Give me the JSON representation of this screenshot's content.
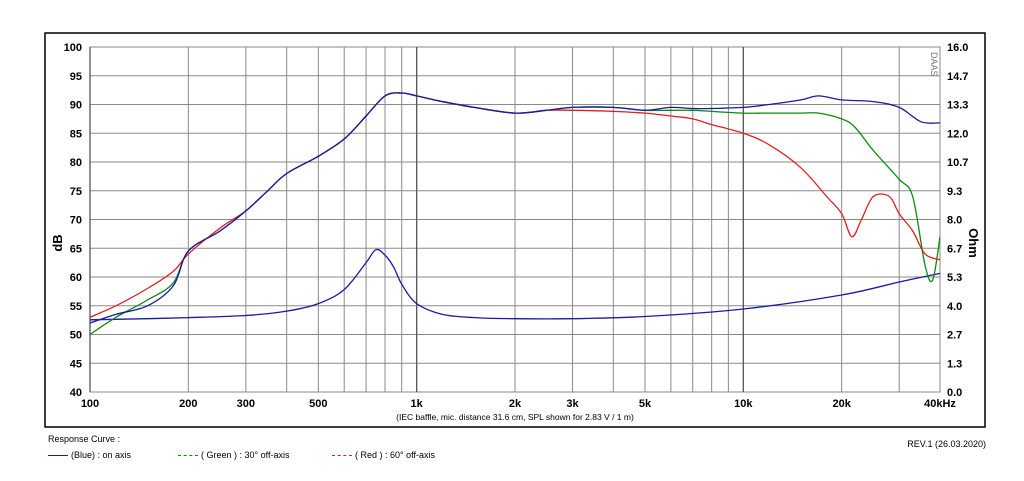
{
  "chart_data": {
    "type": "line",
    "x_scale": "log",
    "xlim": [
      100,
      40000
    ],
    "ylim_left": [
      40,
      100
    ],
    "ylim_right": [
      0.0,
      16.0
    ],
    "xlabel_unit": "kHz",
    "ylabel_left": "dB",
    "ylabel_right": "Ohm",
    "x_ticks": [
      {
        "v": 100,
        "label": "100"
      },
      {
        "v": 200,
        "label": "200"
      },
      {
        "v": 300,
        "label": "300"
      },
      {
        "v": 500,
        "label": "500"
      },
      {
        "v": 1000,
        "label": "1k"
      },
      {
        "v": 2000,
        "label": "2k"
      },
      {
        "v": 3000,
        "label": "3k"
      },
      {
        "v": 5000,
        "label": "5k"
      },
      {
        "v": 10000,
        "label": "10k"
      },
      {
        "v": 20000,
        "label": "20k"
      },
      {
        "v": 40000,
        "label": "40kHz"
      }
    ],
    "y_ticks_left": [
      "100",
      "95",
      "90",
      "85",
      "80",
      "75",
      "70",
      "65",
      "60",
      "55",
      "50",
      "45",
      "40"
    ],
    "y_ticks_right": [
      "16.0",
      "14.7",
      "13.3",
      "12.0",
      "10.7",
      "9.3",
      "8.0",
      "6.7",
      "5.3",
      "4.0",
      "2.7",
      "1.3",
      "0.0"
    ],
    "watermark": "DAAS",
    "note": "(IEC baffle, mic. distance 31.6 cm, SPL shown for 2.83 V / 1 m)",
    "grid": true,
    "series": [
      {
        "name": "(Blue)  : on axis",
        "color": "#1a1aa6",
        "axis": "left",
        "x": [
          100,
          120,
          150,
          180,
          200,
          250,
          300,
          350,
          400,
          500,
          600,
          700,
          800,
          900,
          1000,
          1200,
          1500,
          2000,
          2500,
          3000,
          4000,
          5000,
          6000,
          7000,
          8000,
          10000,
          12000,
          15000,
          17000,
          20000,
          25000,
          30000,
          35000,
          40000
        ],
        "y": [
          52,
          53.5,
          55,
          58.5,
          64.5,
          68,
          71.5,
          75,
          78,
          81,
          84,
          88,
          91.5,
          92,
          91.5,
          90.5,
          89.5,
          88.5,
          89,
          89.5,
          89.5,
          89,
          89.5,
          89.3,
          89.3,
          89.5,
          90,
          90.8,
          91.5,
          90.8,
          90.5,
          89.5,
          87,
          86.8
        ]
      },
      {
        "name": "( Green ) : 30° off-axis",
        "color": "#0a8c0a",
        "axis": "left",
        "x": [
          100,
          120,
          150,
          180,
          200,
          250,
          300,
          350,
          400,
          500,
          600,
          700,
          800,
          900,
          1000,
          1200,
          1500,
          2000,
          2500,
          3000,
          4000,
          5000,
          6000,
          7000,
          8000,
          10000,
          12000,
          15000,
          17000,
          20000,
          22000,
          25000,
          30000,
          33000,
          36000,
          38000,
          40000
        ],
        "y": [
          50,
          53,
          56,
          59,
          64.5,
          68,
          71.5,
          75,
          78,
          81,
          84,
          88,
          91.5,
          92,
          91.5,
          90.5,
          89.5,
          88.5,
          89,
          89.5,
          89.5,
          89,
          89,
          89,
          88.8,
          88.5,
          88.5,
          88.5,
          88.5,
          87.5,
          86,
          82,
          77,
          74,
          62,
          59.5,
          67
        ]
      },
      {
        "name": "( Red ) : 60° off-axis",
        "color": "#e02020",
        "axis": "left",
        "x": [
          100,
          120,
          150,
          180,
          200,
          250,
          300,
          350,
          400,
          500,
          600,
          700,
          800,
          900,
          1000,
          1200,
          1500,
          2000,
          2500,
          3000,
          4000,
          5000,
          6000,
          7000,
          8000,
          10000,
          12000,
          15000,
          18000,
          20000,
          21500,
          23000,
          25000,
          28000,
          30000,
          33000,
          36000,
          40000
        ],
        "y": [
          53,
          55,
          58,
          61,
          64,
          68.5,
          71.5,
          75,
          78,
          81,
          84,
          88,
          91.5,
          92,
          91.5,
          90.5,
          89.5,
          88.5,
          89,
          89,
          88.8,
          88.5,
          88,
          87.5,
          86.5,
          85,
          83,
          79,
          74,
          71,
          67,
          70,
          74,
          74,
          71,
          68,
          64,
          63
        ]
      },
      {
        "name": "Impedance",
        "color": "#1a1aa6",
        "axis": "right",
        "x": [
          100,
          150,
          200,
          300,
          400,
          500,
          600,
          700,
          750,
          800,
          850,
          900,
          1000,
          1200,
          1500,
          2000,
          3000,
          5000,
          10000,
          20000,
          30000,
          40000
        ],
        "y": [
          3.35,
          3.4,
          3.45,
          3.55,
          3.75,
          4.1,
          4.75,
          6.0,
          6.6,
          6.35,
          5.8,
          5.0,
          4.1,
          3.6,
          3.45,
          3.4,
          3.4,
          3.5,
          3.85,
          4.5,
          5.1,
          5.5
        ]
      }
    ]
  },
  "legend": {
    "title": "Response Curve :",
    "items": [
      {
        "text": "(Blue)  : on axis",
        "color": "#1a1aa6"
      },
      {
        "text": "( Green ) : 30° off-axis",
        "color": "#0a8c0a"
      },
      {
        "text": "( Red ) : 60° off-axis",
        "color": "#e02020"
      }
    ]
  },
  "revision": "REV.1 (26.03.2020)"
}
